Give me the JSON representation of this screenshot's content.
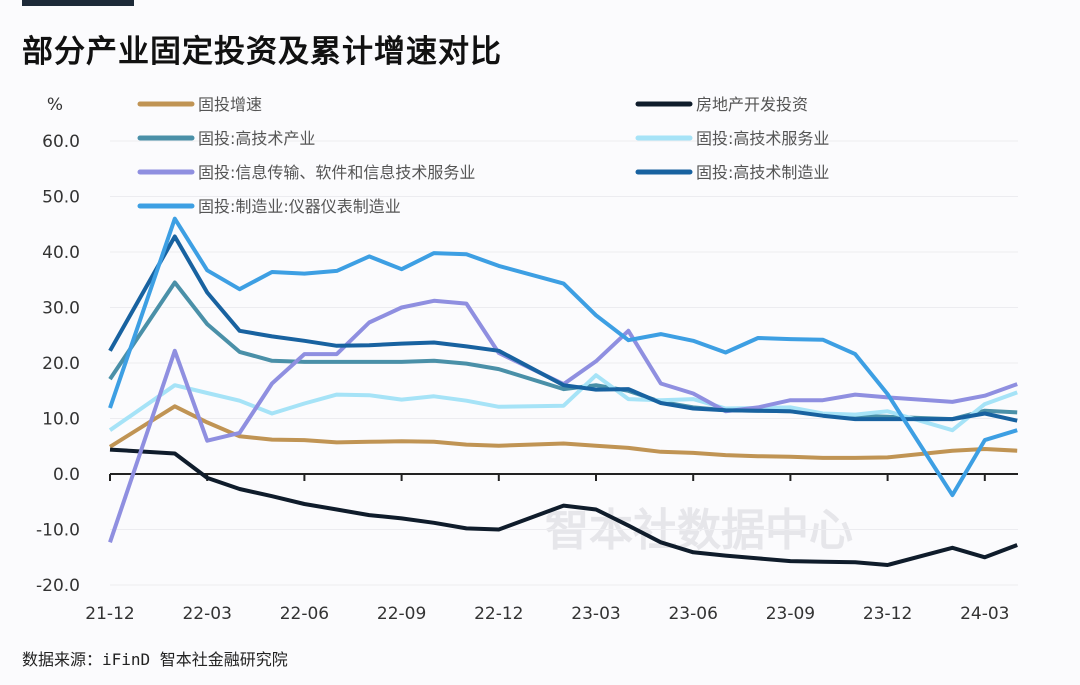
{
  "title": "部分产业固定投资及累计增速对比",
  "source": "数据来源：iFinD 智本社金融研究院",
  "watermark": "智本社数据中心",
  "chart_data": {
    "type": "line",
    "title": "部分产业固定投资及累计增速对比",
    "ylabel": "%",
    "ylim": [
      -20,
      60
    ],
    "yticks": [
      "60.0",
      "50.0",
      "40.0",
      "30.0",
      "20.0",
      "10.0",
      "0.0",
      "-10.0",
      "-20.0"
    ],
    "xticks": [
      "21-12",
      "22-03",
      "22-06",
      "22-09",
      "22-12",
      "23-03",
      "23-06",
      "23-09",
      "23-12",
      "24-03"
    ],
    "grid": true,
    "legend": "top",
    "x": [
      "21-12",
      "22-02",
      "22-03",
      "22-04",
      "22-05",
      "22-06",
      "22-07",
      "22-08",
      "22-09",
      "22-10",
      "22-11",
      "22-12",
      "23-02",
      "23-03",
      "23-04",
      "23-05",
      "23-06",
      "23-07",
      "23-08",
      "23-09",
      "23-10",
      "23-11",
      "23-12",
      "24-02",
      "24-03",
      "24-04"
    ],
    "series": [
      {
        "name": "固投增速",
        "color": "#c09454",
        "values": [
          4.9,
          12.2,
          9.3,
          6.8,
          6.2,
          6.1,
          5.7,
          5.8,
          5.9,
          5.8,
          5.3,
          5.1,
          5.5,
          5.1,
          4.7,
          4.0,
          3.8,
          3.4,
          3.2,
          3.1,
          2.9,
          2.9,
          3.0,
          4.2,
          4.5,
          4.2
        ]
      },
      {
        "name": "房地产开发投资",
        "color": "#0f1c2b",
        "values": [
          4.4,
          3.7,
          -0.7,
          -2.7,
          -4.0,
          -5.4,
          -6.4,
          -7.4,
          -8.0,
          -8.8,
          -9.8,
          -10.0,
          -5.7,
          -6.4,
          -9.3,
          -12.3,
          -14.1,
          -14.7,
          -15.2,
          -15.7,
          -15.8,
          -15.9,
          -16.4,
          -13.3,
          -15.0,
          -12.8
        ]
      },
      {
        "name": "固投:高技术产业",
        "color": "#4a90a8",
        "values": [
          17.1,
          34.5,
          27.0,
          22.0,
          20.4,
          20.2,
          20.2,
          20.2,
          20.2,
          20.4,
          19.9,
          18.9,
          15.3,
          16.0,
          15.0,
          13.0,
          12.0,
          11.5,
          11.4,
          11.3,
          10.8,
          10.5,
          10.3,
          9.9,
          11.4,
          11.1
        ]
      },
      {
        "name": "固投:高技术服务业",
        "color": "#a6e3f7",
        "values": [
          7.9,
          16.0,
          14.6,
          13.2,
          10.9,
          12.7,
          14.3,
          14.2,
          13.4,
          14.0,
          13.2,
          12.1,
          12.3,
          17.8,
          13.5,
          13.3,
          13.5,
          11.8,
          11.9,
          12.0,
          10.9,
          10.7,
          11.3,
          7.9,
          12.6,
          14.7
        ]
      },
      {
        "name": "固投:信息传输、软件和信息技术服务业",
        "color": "#8f8fe0",
        "values": [
          -12.3,
          22.2,
          6.0,
          7.4,
          16.3,
          21.6,
          21.6,
          27.3,
          30.0,
          31.2,
          30.7,
          21.8,
          16.2,
          20.3,
          25.8,
          16.3,
          14.5,
          11.3,
          12.0,
          13.3,
          13.3,
          14.3,
          13.8,
          13.0,
          14.1,
          16.2
        ]
      },
      {
        "name": "固投:高技术制造业",
        "color": "#1862a0",
        "values": [
          22.2,
          42.8,
          32.7,
          25.8,
          24.8,
          24.0,
          23.1,
          23.2,
          23.5,
          23.7,
          23.0,
          22.2,
          16.0,
          15.2,
          15.3,
          12.8,
          11.8,
          11.5,
          11.4,
          11.3,
          10.5,
          9.9,
          9.9,
          9.9,
          10.9,
          9.6
        ]
      },
      {
        "name": "固投:制造业:仪器仪表制造业",
        "color": "#3d9fe3",
        "values": [
          11.9,
          46.0,
          36.7,
          33.3,
          36.4,
          36.1,
          36.6,
          39.2,
          36.9,
          39.8,
          39.6,
          37.5,
          34.3,
          28.6,
          24.1,
          25.2,
          24.0,
          21.9,
          24.5,
          24.3,
          24.2,
          21.6,
          14.4,
          -3.8,
          6.1,
          7.9
        ]
      }
    ]
  }
}
